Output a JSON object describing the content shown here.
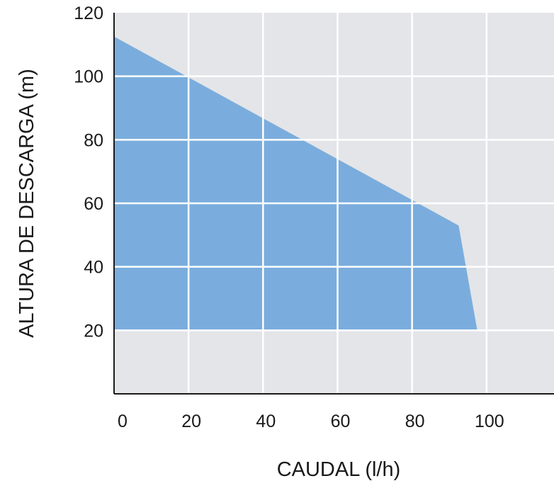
{
  "chart_data": {
    "type": "area",
    "xlabel": "CAUDAL (l/h)",
    "ylabel": "ALTURA DE DESCARGA (m)",
    "xlim": [
      0,
      120
    ],
    "ylim": [
      0,
      120
    ],
    "x_ticks": [
      0,
      20,
      40,
      60,
      80,
      100
    ],
    "y_ticks": [
      20,
      40,
      60,
      80,
      100,
      120
    ],
    "grid": true,
    "series": [
      {
        "points": [
          [
            0,
            112.5
          ],
          [
            92.5,
            53
          ],
          [
            97.5,
            20
          ],
          [
            0,
            20
          ]
        ],
        "fill": "#7aaddd"
      }
    ]
  },
  "colors": {
    "plot_background": "#e4e5e8",
    "gridline": "#ffffff",
    "axis": "#1a1a1a",
    "area_fill": "#7aaddd"
  }
}
